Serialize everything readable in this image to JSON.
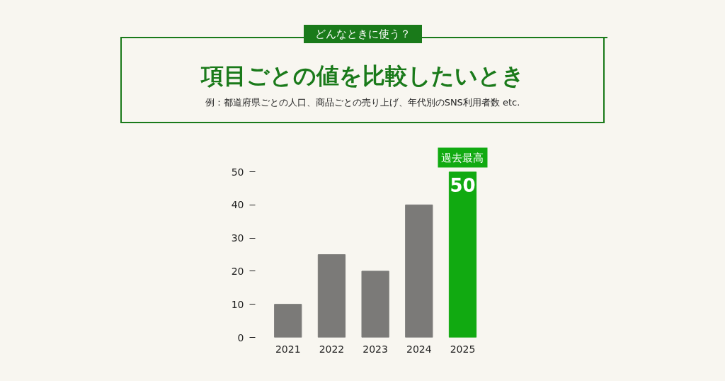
{
  "chart_data": {
    "type": "bar",
    "title": "項目ごとの値を比較したいとき",
    "subtitle": "例：都道府県ごとの人口、商品ごとの売り上げ、年代別のSNS利用者数 etc.",
    "annotations": [
      "どんなときに使う？",
      {
        "text": "過去最高",
        "x": "2025",
        "y": 50
      }
    ],
    "categories": [
      "2021",
      "2022",
      "2023",
      "2024",
      "2025"
    ],
    "values": [
      10,
      25,
      20,
      40,
      50
    ],
    "colors": [
      "#7b7a78",
      "#7b7a78",
      "#7b7a78",
      "#7b7a78",
      "#11aa11"
    ],
    "value_labels": [
      null,
      null,
      null,
      null,
      "50"
    ],
    "ylim": [
      0,
      50
    ],
    "yticks": [
      0,
      10,
      20,
      30,
      40,
      50
    ]
  }
}
